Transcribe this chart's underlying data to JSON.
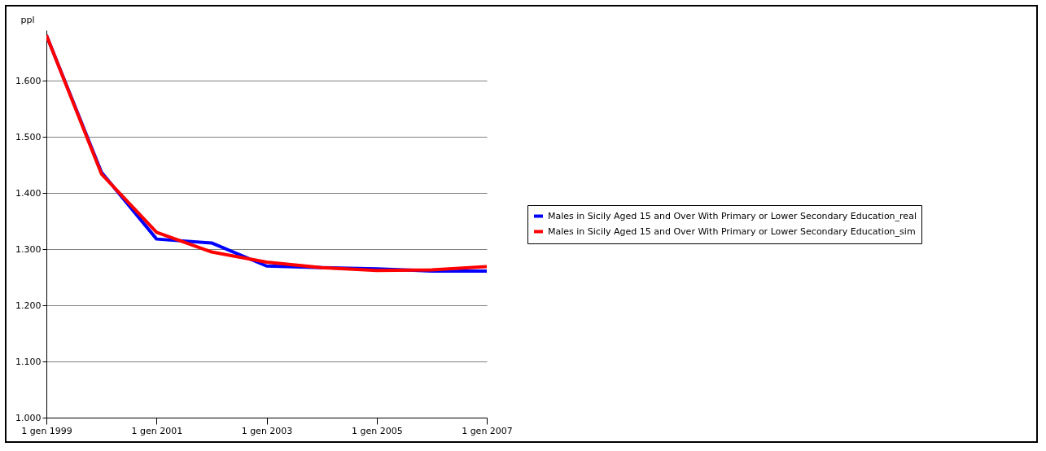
{
  "chart_data": {
    "type": "line",
    "ylabel": "ppl",
    "x": [
      "1999-01-01",
      "2000-01-01",
      "2001-01-01",
      "2002-01-01",
      "2003-01-01",
      "2004-01-01",
      "2005-01-01",
      "2006-01-01",
      "2007-01-01"
    ],
    "xlim": [
      "1999-01-01",
      "2007-01-01"
    ],
    "xticks": [
      {
        "value": "1999-01-01",
        "label": "1 gen 1999"
      },
      {
        "value": "2001-01-01",
        "label": "1 gen 2001"
      },
      {
        "value": "2003-01-01",
        "label": "1 gen 2003"
      },
      {
        "value": "2005-01-01",
        "label": "1 gen 2005"
      },
      {
        "value": "2007-01-01",
        "label": "1 gen 2007"
      }
    ],
    "ylim": [
      1,
      1.69
    ],
    "yticks": [
      {
        "value": 1,
        "label": "1.000"
      },
      {
        "value": 1.1,
        "label": "1.100"
      },
      {
        "value": 1.2,
        "label": "1.200"
      },
      {
        "value": 1.3,
        "label": "1.300"
      },
      {
        "value": 1.4,
        "label": "1.400"
      },
      {
        "value": 1.5,
        "label": "1.500"
      },
      {
        "value": 1.6,
        "label": "1.600"
      }
    ],
    "grid": "y",
    "legend": "right",
    "line_style": "solid",
    "series": [
      {
        "name": "Males in Sicily Aged 15 and Over With Primary or Lower Secondary Education_real",
        "color": "#0000ff",
        "values": [
          1.681,
          1.437,
          1.318,
          1.311,
          1.27,
          1.267,
          1.265,
          1.261,
          1.261
        ]
      },
      {
        "name": "Males in Sicily Aged 15 and Over With Primary or Lower Secondary Education_sim",
        "color": "#ff0000",
        "values": [
          1.681,
          1.434,
          1.33,
          1.295,
          1.277,
          1.267,
          1.262,
          1.263,
          1.269
        ]
      }
    ]
  }
}
